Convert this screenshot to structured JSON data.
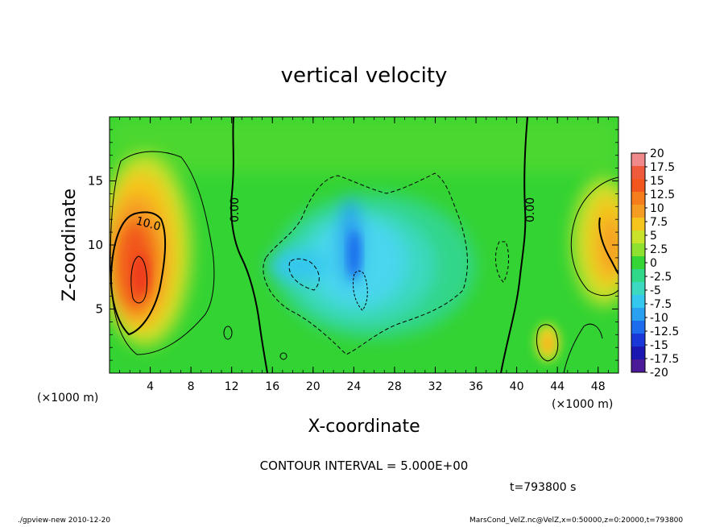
{
  "chart_data": {
    "type": "heatmap",
    "title": "vertical velocity",
    "xlabel": "X-coordinate",
    "ylabel": "Z-coordinate",
    "x_unit_note": "(×1000 m)",
    "y_unit_note": "(×1000 m)",
    "xlim": [
      0,
      50
    ],
    "ylim": [
      0,
      20
    ],
    "x_ticks": [
      4,
      8,
      12,
      16,
      20,
      24,
      28,
      32,
      36,
      40,
      44,
      48
    ],
    "y_ticks": [
      5,
      10,
      15
    ],
    "grid": false,
    "colorbar": {
      "labels": [
        "20",
        "17.5",
        "15",
        "12.5",
        "10",
        "7.5",
        "5",
        "2.5",
        "0",
        "-2.5",
        "-5",
        "-7.5",
        "-10",
        "-12.5",
        "-15",
        "-17.5",
        "-20"
      ],
      "colors": [
        "#f08a8a",
        "#ee5a3a",
        "#f2561d",
        "#f57d1c",
        "#f59d22",
        "#f5c51e",
        "#c9e22a",
        "#8ee12f",
        "#35d535",
        "#30d88a",
        "#3ad9c0",
        "#35c8ee",
        "#2aa0f0",
        "#1e6cee",
        "#1a38d8",
        "#1a18b0",
        "#4a1a98"
      ]
    },
    "contour_interval": "CONTOUR INTERVAL = 5.000E+00",
    "contour_labels": [
      "10.0",
      "0.00",
      "0.00"
    ],
    "features": [
      {
        "x": 3.2,
        "z": 9.5,
        "value": 12.5,
        "label": "updraft left"
      },
      {
        "x": 23.5,
        "z": 8,
        "value": -10,
        "label": "downdraft center"
      },
      {
        "x": 43,
        "z": 2.5,
        "value": 10,
        "label": "small updraft"
      },
      {
        "x": 48.5,
        "z": 10,
        "value": 10,
        "label": "updraft right"
      }
    ],
    "time_label": "t=793800 s"
  },
  "footer": {
    "left": "./gpview-new   2010-12-20",
    "right": "MarsCond_VelZ.nc@VelZ,x=0:50000,z=0:20000,t=793800"
  }
}
